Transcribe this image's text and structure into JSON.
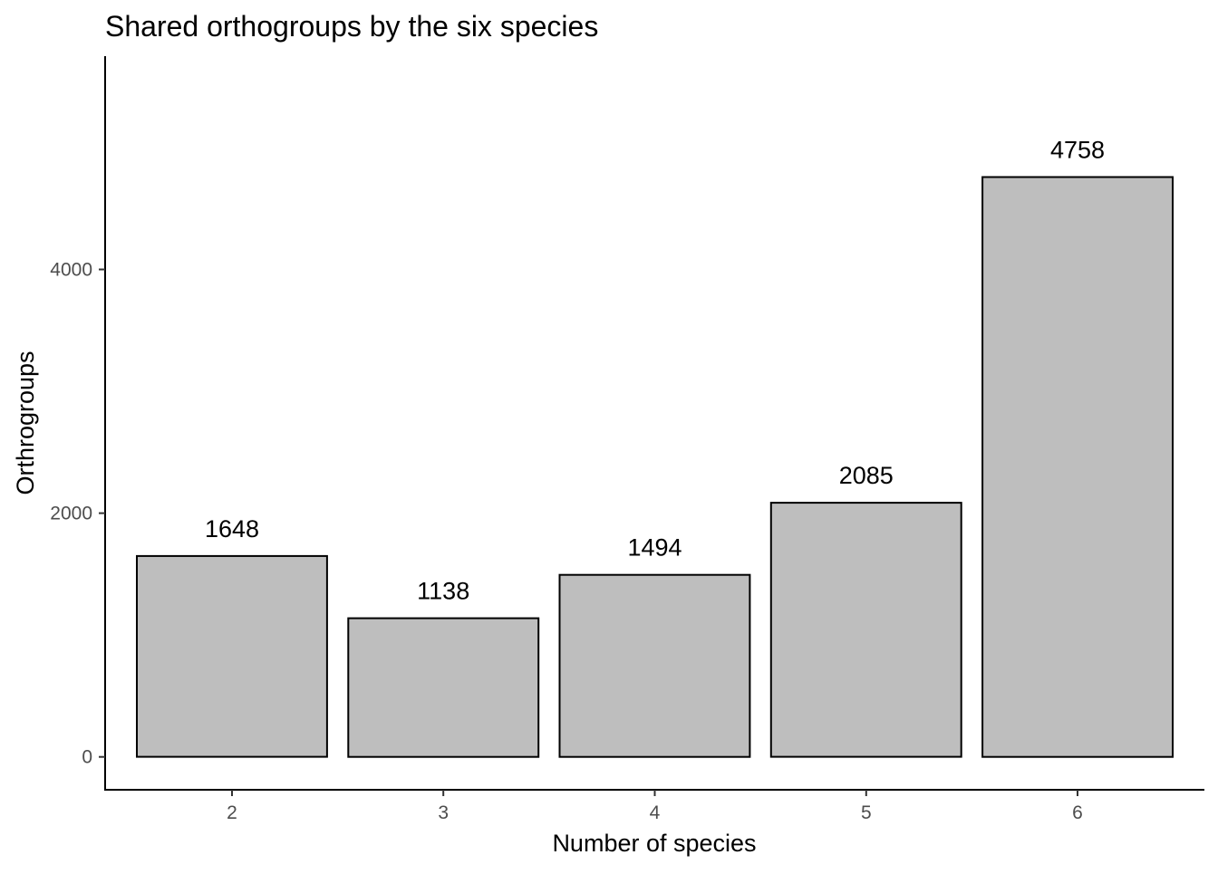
{
  "chart_data": {
    "type": "bar",
    "title": "Shared orthogroups by the six species",
    "xlabel": "Number of species",
    "ylabel": "Orthrogroups",
    "categories": [
      "2",
      "3",
      "4",
      "5",
      "6"
    ],
    "values": [
      1648,
      1138,
      1494,
      2085,
      4758
    ],
    "data_labels": [
      "1648",
      "1138",
      "1494",
      "2085",
      "4758"
    ],
    "yticks": [
      0,
      2000,
      4000
    ],
    "ytick_labels": [
      "0",
      "2000",
      "4000"
    ],
    "ylim": [
      -270,
      5750
    ],
    "grid": false,
    "legend": "none",
    "colors": {
      "bar_fill": "#bebebe",
      "bar_outline": "#000000",
      "axis": "#000000",
      "tick_text": "#4d4d4d",
      "background": "#ffffff"
    }
  }
}
